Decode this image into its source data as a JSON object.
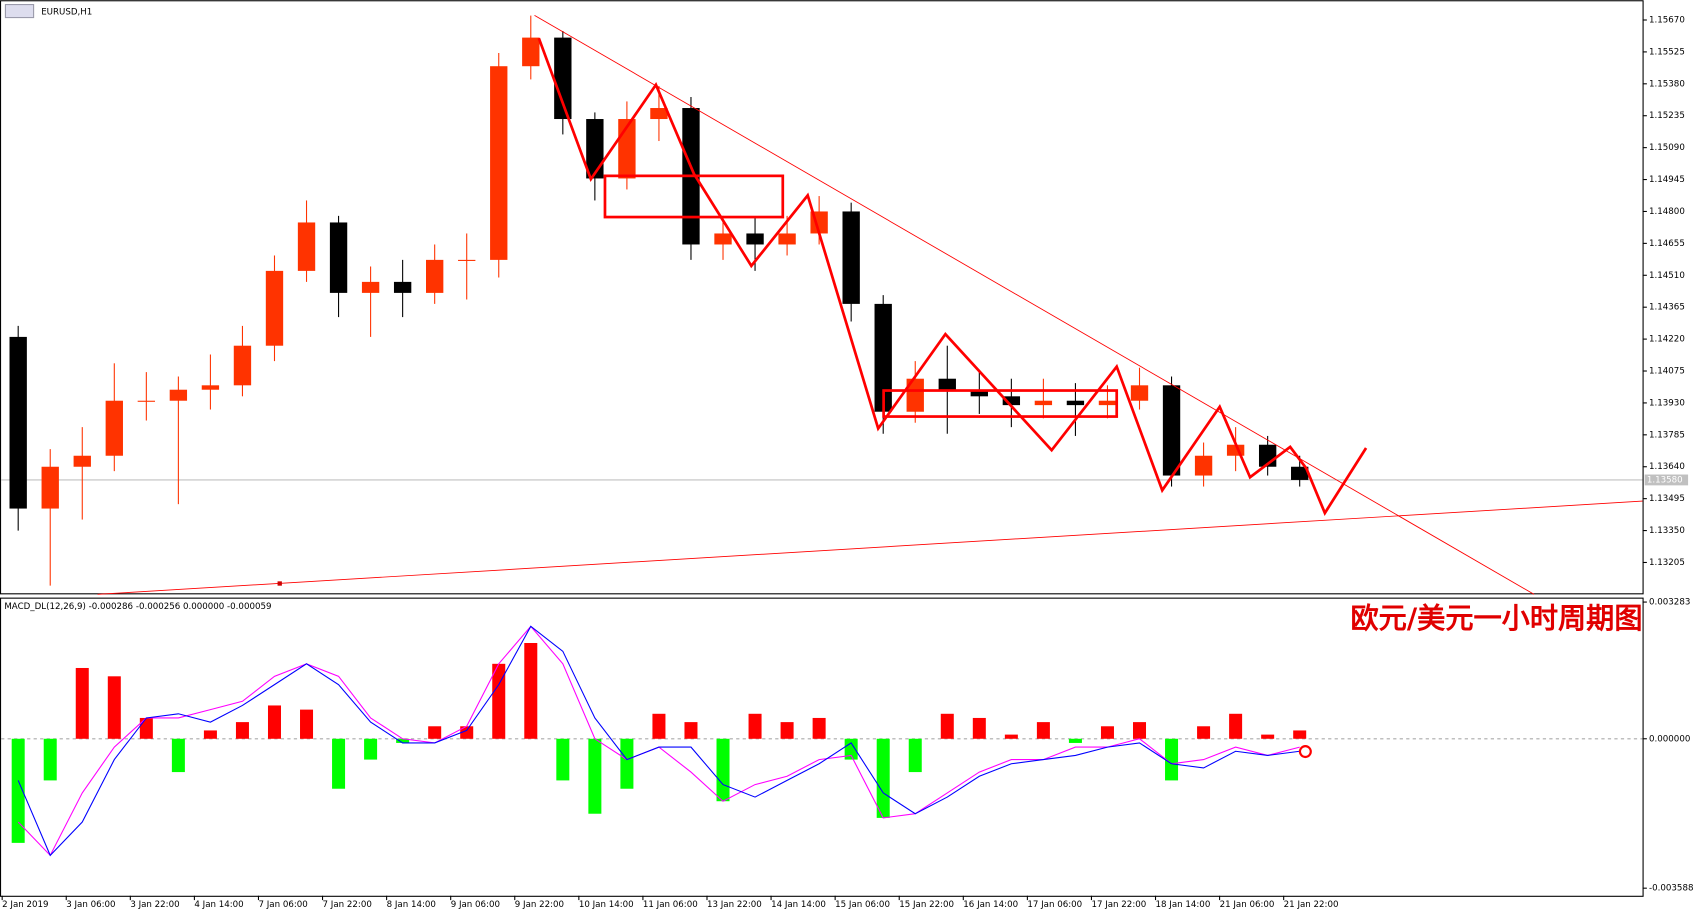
{
  "chart_data": {
    "type": "candlestick",
    "title": "EURUSD,H1",
    "annotation": "欧元/美元一小时周期图",
    "categories": [
      "2 Jan 2019",
      null,
      "3 Jan 06:00",
      null,
      "3 Jan 22:00",
      null,
      "4 Jan 14:00",
      null,
      "7 Jan 06:00",
      null,
      "7 Jan 22:00",
      null,
      "8 Jan 14:00",
      null,
      "9 Jan 06:00",
      null,
      "9 Jan 22:00",
      null,
      "10 Jan 14:00",
      null,
      "11 Jan 06:00",
      null,
      "13 Jan 22:00",
      null,
      "14 Jan 14:00",
      null,
      "15 Jan 06:00",
      null,
      "15 Jan 22:00",
      null,
      "16 Jan 14:00",
      null,
      "17 Jan 06:00",
      null,
      "17 Jan 22:00",
      null,
      "18 Jan 14:00",
      null,
      "21 Jan 06:00",
      null,
      "21 Jan 22:00"
    ],
    "open": [
      1.1423,
      1.1345,
      1.1364,
      1.1369,
      1.1394,
      1.1394,
      1.1399,
      1.1401,
      1.1419,
      1.1453,
      1.1475,
      1.1443,
      1.1448,
      1.1443,
      1.1458,
      1.1458,
      1.1546,
      1.1559,
      1.1522,
      1.1495,
      1.1522,
      1.1527,
      1.1465,
      1.147,
      1.1465,
      1.147,
      1.148,
      1.1438,
      1.1389,
      1.1404,
      1.1399,
      1.1396,
      1.1392,
      1.1394,
      1.1392,
      1.1394,
      1.1401,
      1.136,
      1.1369,
      1.1374,
      1.1364
    ],
    "high": [
      1.1428,
      1.1372,
      1.1382,
      1.1411,
      1.1407,
      1.1405,
      1.1415,
      1.1428,
      1.146,
      1.1485,
      1.1478,
      1.1455,
      1.1458,
      1.1465,
      1.147,
      1.1552,
      1.1569,
      1.1562,
      1.1525,
      1.153,
      1.1537,
      1.1532,
      1.1478,
      1.1477,
      1.1478,
      1.1487,
      1.1484,
      1.1442,
      1.1412,
      1.1419,
      1.1408,
      1.1404,
      1.1404,
      1.1402,
      1.1401,
      1.1409,
      1.1405,
      1.1375,
      1.1382,
      1.1378,
      1.1369
    ],
    "low": [
      1.1335,
      1.131,
      1.134,
      1.1362,
      1.1385,
      1.1347,
      1.139,
      1.1396,
      1.1412,
      1.1448,
      1.1432,
      1.1423,
      1.1432,
      1.1438,
      1.144,
      1.145,
      1.154,
      1.1515,
      1.1485,
      1.149,
      1.1512,
      1.1458,
      1.1458,
      1.1453,
      1.146,
      1.1465,
      1.143,
      1.1379,
      1.1384,
      1.1379,
      1.1388,
      1.1382,
      1.1386,
      1.1378,
      1.1386,
      1.139,
      1.1355,
      1.1355,
      1.1362,
      1.136,
      1.1355
    ],
    "close": [
      1.1345,
      1.1364,
      1.1369,
      1.1394,
      1.1394,
      1.1399,
      1.1401,
      1.1419,
      1.1453,
      1.1475,
      1.1443,
      1.1448,
      1.1443,
      1.1458,
      1.1458,
      1.1546,
      1.1559,
      1.1522,
      1.1495,
      1.1522,
      1.1527,
      1.1465,
      1.147,
      1.1465,
      1.147,
      1.148,
      1.1438,
      1.1389,
      1.1404,
      1.1399,
      1.1396,
      1.1392,
      1.1394,
      1.1392,
      1.1394,
      1.1401,
      1.136,
      1.1369,
      1.1374,
      1.1364,
      1.1358
    ],
    "up_color": "#ff3300",
    "down_color": "#000000",
    "ylim": [
      1.1307,
      1.1575
    ],
    "yticks": [
      {
        "value": 1.1567,
        "label": "1.15670"
      },
      {
        "value": 1.15525,
        "label": "1.15525"
      },
      {
        "value": 1.1538,
        "label": "1.15380"
      },
      {
        "value": 1.15235,
        "label": "1.15235"
      },
      {
        "value": 1.1509,
        "label": "1.15090"
      },
      {
        "value": 1.14945,
        "label": "1.14945"
      },
      {
        "value": 1.148,
        "label": "1.14800"
      },
      {
        "value": 1.14655,
        "label": "1.14655"
      },
      {
        "value": 1.1451,
        "label": "1.14510"
      },
      {
        "value": 1.14365,
        "label": "1.14365"
      },
      {
        "value": 1.1422,
        "label": "1.14220"
      },
      {
        "value": 1.14075,
        "label": "1.14075"
      },
      {
        "value": 1.1393,
        "label": "1.13930"
      },
      {
        "value": 1.13785,
        "label": "1.13785"
      },
      {
        "value": 1.1364,
        "label": "1.13640"
      },
      {
        "value": 1.13495,
        "label": "1.13495"
      },
      {
        "value": 1.1335,
        "label": "1.13350"
      },
      {
        "value": 1.13205,
        "label": "1.13205"
      }
    ],
    "current_price": {
      "value": 1.1358,
      "label": "1.13580"
    },
    "indicator": {
      "label": "MACD_DL(12,26,9) -0.000286 -0.000256 0.000000 -0.000059",
      "ylim": [
        -0.00377,
        0.00339
      ],
      "yticks": [
        0.003283,
        {
          "value": 0,
          "label": "0.000000"
        },
        -0.003588
      ],
      "positive_color": "#ff0000",
      "negative_color": "#00ff00",
      "histogram": [
        -0.0025,
        -0.001,
        0.0017,
        0.0015,
        0.0005,
        -0.0008,
        0.0002,
        0.0004,
        0.0008,
        0.0007,
        -0.0012,
        -0.0005,
        -0.0001,
        0.0003,
        0.0003,
        0.0018,
        0.0023,
        -0.001,
        -0.0018,
        -0.0012,
        0.0006,
        0.0004,
        -0.0015,
        0.0006,
        0.0004,
        0.0005,
        -0.0005,
        -0.0019,
        -0.0008,
        0.0006,
        0.0005,
        0.0001,
        0.0004,
        -0.0001,
        0.0003,
        0.0004,
        -0.001,
        0.0003,
        0.0006,
        0.0001,
        0.0002
      ],
      "lines": [
        {
          "color": "#ff00ff",
          "values": [
            -0.002,
            -0.0028,
            -0.0013,
            -0.0002,
            0.0005,
            0.0005,
            0.0007,
            0.0009,
            0.0015,
            0.0018,
            0.0015,
            0.0005,
            0,
            -0.0001,
            0.0003,
            0.0018,
            0.0027,
            0.0018,
            0,
            -0.0005,
            -0.0002,
            -0.0008,
            -0.0015,
            -0.0011,
            -0.0009,
            -0.0005,
            -0.0004,
            -0.0019,
            -0.0018,
            -0.0013,
            -0.0008,
            -0.0005,
            -0.0005,
            -0.0002,
            -0.0002,
            0,
            -0.0006,
            -0.0005,
            -0.0002,
            -0.0004,
            -0.0002
          ]
        },
        {
          "color": "#0000ff",
          "values": [
            -0.001,
            -0.0028,
            -0.002,
            -0.0005,
            0.0005,
            0.0006,
            0.0004,
            0.0008,
            0.0013,
            0.0018,
            0.0013,
            0.0004,
            -0.0001,
            -0.0001,
            0.0002,
            0.0013,
            0.0027,
            0.0021,
            0.0005,
            -0.0005,
            -0.0002,
            -0.0002,
            -0.0011,
            -0.0014,
            -0.001,
            -0.0006,
            -0.0001,
            -0.0013,
            -0.0018,
            -0.0014,
            -0.0009,
            -0.0006,
            -0.0005,
            -0.0004,
            -0.0002,
            -0.0001,
            -0.0006,
            -0.0007,
            -0.0003,
            -0.0004,
            -0.0003
          ]
        }
      ]
    }
  }
}
